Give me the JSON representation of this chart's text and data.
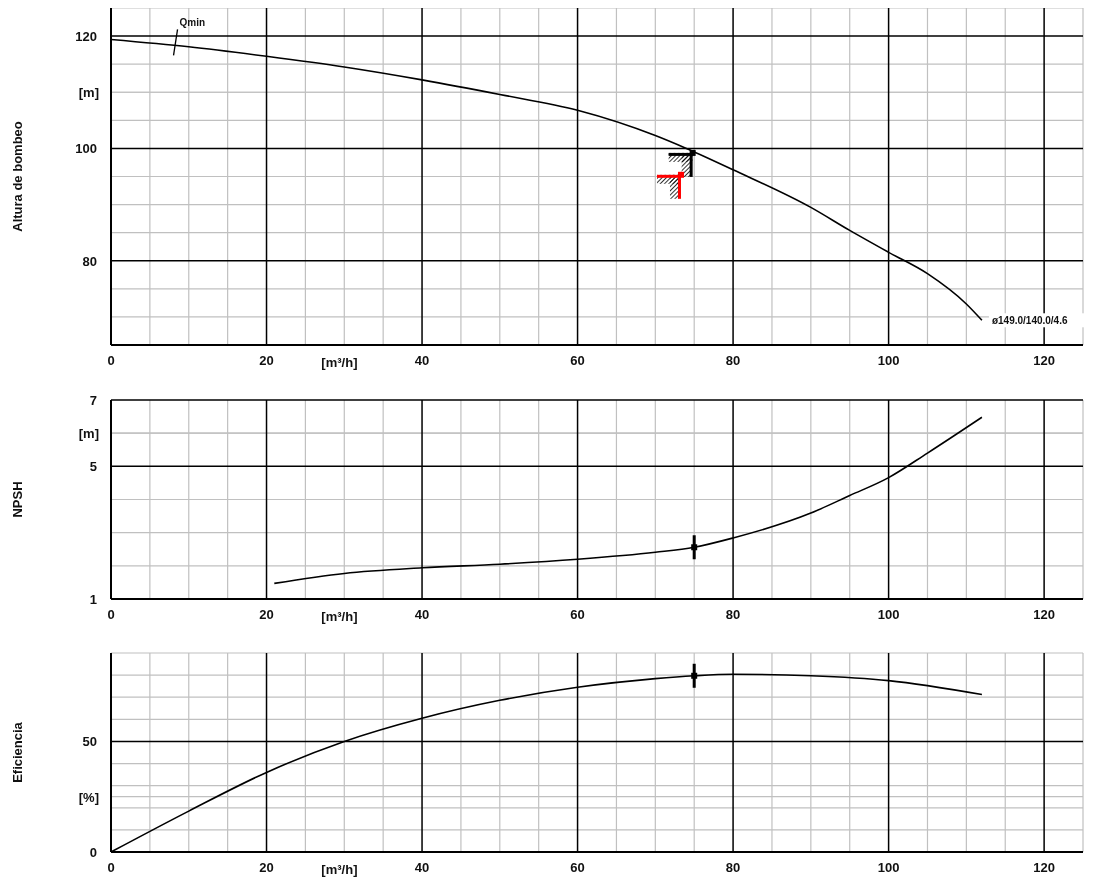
{
  "chart_data": [
    {
      "type": "line",
      "ylabel": "Altura de bombeo",
      "xlabel": "[m³/h]",
      "grid": true,
      "legend": false,
      "xlim": [
        0,
        125
      ],
      "ylim": [
        65,
        125
      ],
      "xticks": [
        0,
        {
          "value": 5,
          "label": null
        },
        {
          "value": 10,
          "label": null
        },
        {
          "value": 15,
          "label": null
        },
        20,
        {
          "value": 25,
          "label": null
        },
        {
          "value": 30,
          "label": null
        },
        {
          "value": 35,
          "label": null
        },
        40,
        {
          "value": 45,
          "label": null
        },
        {
          "value": 50,
          "label": null
        },
        {
          "value": 55,
          "label": null
        },
        60,
        {
          "value": 65,
          "label": null
        },
        {
          "value": 70,
          "label": null
        },
        {
          "value": 75,
          "label": null
        },
        80,
        {
          "value": 85,
          "label": null
        },
        {
          "value": 90,
          "label": null
        },
        {
          "value": 95,
          "label": null
        },
        100,
        {
          "value": 105,
          "label": null
        },
        {
          "value": 110,
          "label": null
        },
        {
          "value": 115,
          "label": null
        },
        120,
        {
          "value": 125,
          "label": null
        }
      ],
      "yticks": [
        {
          "value": 65,
          "label": null
        },
        {
          "value": 70,
          "label": null
        },
        {
          "value": 75,
          "label": null
        },
        80,
        {
          "value": 85,
          "label": null
        },
        {
          "value": 90,
          "label": null
        },
        {
          "value": 95,
          "label": null
        },
        100,
        {
          "value": 105,
          "label": null
        },
        {
          "value": 110,
          "label": null
        },
        {
          "value": 110,
          "label": "[m]"
        },
        {
          "value": 115,
          "label": null
        },
        120,
        {
          "value": 125,
          "label": null
        }
      ],
      "series": [
        {
          "color": "#000000",
          "x": [
            0,
            10,
            20,
            30,
            40,
            50,
            60,
            70,
            74,
            80,
            90,
            95,
            100,
            105,
            110,
            112
          ],
          "values": [
            119.4,
            118.1,
            116.4,
            114.5,
            112.2,
            109.6,
            106.8,
            102.3,
            100,
            96.2,
            89.5,
            85.4,
            81.5,
            77.7,
            72.3,
            69.4
          ]
        },
        {
          "type": "scatter",
          "marker": "square",
          "color": "#000000",
          "x": [
            74.8
          ],
          "values": [
            99.2
          ]
        },
        {
          "type": "scatter",
          "marker": "square",
          "color": "#ff0000",
          "x": [
            73.3
          ],
          "values": [
            95.3
          ]
        }
      ],
      "annotations": [
        {
          "text": "Qmin",
          "x": 8.3,
          "y": 118.7
        },
        {
          "text": "ø149.0/140.0/4.6",
          "x": 112,
          "y": 69.4
        }
      ]
    },
    {
      "type": "line",
      "ylabel": "NPSH",
      "xlabel": "[m³/h]",
      "grid": true,
      "legend": false,
      "xlim": [
        0,
        125
      ],
      "ylim": [
        1,
        7
      ],
      "xticks": [
        0,
        {
          "value": 5,
          "label": null
        },
        {
          "value": 10,
          "label": null
        },
        {
          "value": 15,
          "label": null
        },
        20,
        {
          "value": 25,
          "label": null
        },
        {
          "value": 30,
          "label": null
        },
        {
          "value": 35,
          "label": null
        },
        40,
        {
          "value": 45,
          "label": null
        },
        {
          "value": 50,
          "label": null
        },
        {
          "value": 55,
          "label": null
        },
        60,
        {
          "value": 65,
          "label": null
        },
        {
          "value": 70,
          "label": null
        },
        {
          "value": 75,
          "label": null
        },
        80,
        {
          "value": 85,
          "label": null
        },
        {
          "value": 90,
          "label": null
        },
        {
          "value": 95,
          "label": null
        },
        100,
        {
          "value": 105,
          "label": null
        },
        {
          "value": 110,
          "label": null
        },
        {
          "value": 115,
          "label": null
        },
        120,
        {
          "value": 125,
          "label": null
        }
      ],
      "yticks": [
        1,
        {
          "value": 2,
          "label": null
        },
        {
          "value": 3,
          "label": null
        },
        {
          "value": 4,
          "label": null
        },
        5,
        {
          "value": 6,
          "label": null
        },
        {
          "value": 6,
          "label": "[m]"
        },
        7
      ],
      "series": [
        {
          "color": "#000000",
          "x": [
            21,
            30,
            40,
            50,
            60,
            70,
            75,
            80,
            90,
            95,
            100,
            105,
            112
          ],
          "values": [
            1.47,
            1.77,
            1.94,
            2.05,
            2.2,
            2.41,
            2.56,
            2.84,
            3.59,
            4.12,
            4.66,
            5.4,
            6.48
          ]
        },
        {
          "type": "scatter",
          "color": "#000000",
          "x": [
            75
          ],
          "values": [
            2.56
          ]
        }
      ]
    },
    {
      "type": "line",
      "ylabel": "Eficiencia",
      "xlabel": "[m³/h]",
      "grid": true,
      "legend": false,
      "xlim": [
        0,
        125
      ],
      "ylim": [
        0,
        90
      ],
      "xticks": [
        0,
        {
          "value": 5,
          "label": null
        },
        {
          "value": 10,
          "label": null
        },
        {
          "value": 15,
          "label": null
        },
        20,
        {
          "value": 25,
          "label": null
        },
        {
          "value": 30,
          "label": null
        },
        {
          "value": 35,
          "label": null
        },
        40,
        {
          "value": 45,
          "label": null
        },
        {
          "value": 50,
          "label": null
        },
        {
          "value": 55,
          "label": null
        },
        60,
        {
          "value": 65,
          "label": null
        },
        {
          "value": 70,
          "label": null
        },
        {
          "value": 75,
          "label": null
        },
        80,
        {
          "value": 85,
          "label": null
        },
        {
          "value": 90,
          "label": null
        },
        {
          "value": 95,
          "label": null
        },
        100,
        {
          "value": 105,
          "label": null
        },
        {
          "value": 110,
          "label": null
        },
        {
          "value": 115,
          "label": null
        },
        120,
        {
          "value": 125,
          "label": null
        }
      ],
      "yticks": [
        0,
        {
          "value": 10,
          "label": null
        },
        {
          "value": 20,
          "label": null
        },
        {
          "value": 25,
          "label": "[%]"
        },
        {
          "value": 30,
          "label": null
        },
        {
          "value": 40,
          "label": null
        },
        50,
        {
          "value": 60,
          "label": null
        },
        {
          "value": 70,
          "label": null
        },
        {
          "value": 80,
          "label": null
        },
        {
          "value": 90,
          "label": null
        }
      ],
      "series": [
        {
          "color": "#000000",
          "x": [
            0,
            10,
            20,
            30,
            40,
            50,
            60,
            70,
            75,
            80,
            90,
            100,
            112
          ],
          "values": [
            0,
            18.5,
            36,
            50,
            60.5,
            68.6,
            74.5,
            78.4,
            79.7,
            80.4,
            79.7,
            77.5,
            71.2
          ]
        },
        {
          "type": "scatter",
          "color": "#000000",
          "x": [
            75
          ],
          "values": [
            79.7
          ]
        }
      ]
    }
  ]
}
